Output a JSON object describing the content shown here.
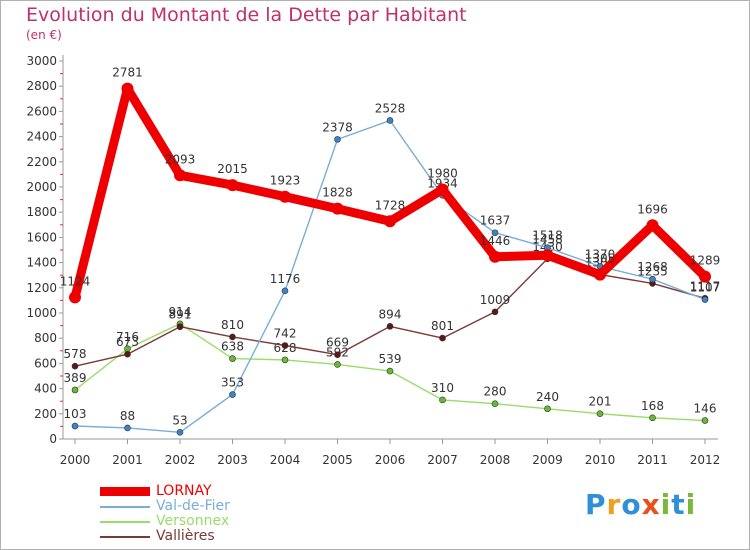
{
  "title": "Evolution du Montant de la Dette par Habitant",
  "subtitle": "(en €)",
  "logo": {
    "text": "Proxiti",
    "letters": [
      {
        "ch": "P",
        "color": "#2f8fd8"
      },
      {
        "ch": "r",
        "color": "#f0a020"
      },
      {
        "ch": "o",
        "color": "#2f8fd8"
      },
      {
        "ch": "x",
        "color": "#e8501c"
      },
      {
        "ch": "i",
        "color": "#7ab83c"
      },
      {
        "ch": "t",
        "color": "#2f8fd8"
      },
      {
        "ch": "i",
        "color": "#7ab83c"
      }
    ]
  },
  "chart_data": {
    "type": "line",
    "x": [
      "2000",
      "2001",
      "2002",
      "2003",
      "2004",
      "2005",
      "2006",
      "2007",
      "2008",
      "2009",
      "2010",
      "2011",
      "2012"
    ],
    "ylim": [
      0,
      3000
    ],
    "yticks": [
      0,
      200,
      400,
      600,
      800,
      1000,
      1200,
      1400,
      1600,
      1800,
      2000,
      2200,
      2400,
      2600,
      2800,
      3000
    ],
    "grid": false,
    "legend_position": "bottom-left",
    "series": [
      {
        "name": "Versonnex",
        "color": "#99dd66",
        "marker_color": "#66bb33",
        "values": [
          389,
          716,
          914,
          638,
          628,
          592,
          539,
          310,
          280,
          240,
          201,
          168,
          146
        ],
        "labels": [
          "389",
          "716",
          "914",
          "638",
          "628",
          "592",
          "539",
          "310",
          "280",
          "240",
          "201",
          "168",
          "146"
        ]
      },
      {
        "name": "Vallières",
        "color": "#7a3a3a",
        "marker_color": "#5a1818",
        "values": [
          578,
          673,
          891,
          810,
          742,
          669,
          894,
          801,
          1009,
          1430,
          1305,
          1235,
          1117
        ],
        "labels": [
          "578",
          "673",
          "891",
          "810",
          "742",
          "669",
          "894",
          "801",
          "1009",
          "1430",
          "1305",
          "1235",
          "1117"
        ]
      },
      {
        "name": "Val-de-Fier",
        "color": "#7aaed8",
        "marker_color": "#3a84c8",
        "values": [
          103,
          88,
          53,
          353,
          1176,
          2378,
          2528,
          1934,
          1637,
          1518,
          1370,
          1268,
          1107
        ],
        "labels": [
          "103",
          "88",
          "53",
          "353",
          "1176",
          "2378",
          "2528",
          "1934",
          "1637",
          "1518",
          "1370",
          "1268",
          "1107"
        ]
      },
      {
        "name": "LORNAY",
        "color": "#ee0000",
        "marker_color": "#ee0000",
        "values": [
          1124,
          2781,
          2093,
          2015,
          1923,
          1828,
          1728,
          1980,
          1446,
          1458,
          1305,
          1696,
          1289
        ],
        "labels": [
          "1124",
          "2781",
          "2093",
          "2015",
          "1923",
          "1828",
          "1728",
          "1980",
          "1446",
          "1458",
          "1305",
          "1696",
          "1289"
        ]
      }
    ],
    "legend": [
      "LORNAY",
      "Val-de-Fier",
      "Versonnex",
      "Vallières"
    ]
  }
}
